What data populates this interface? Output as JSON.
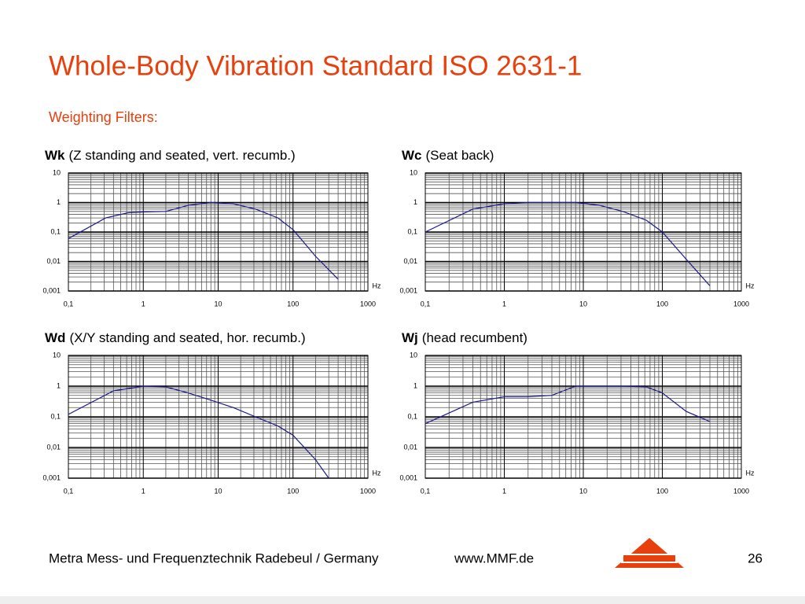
{
  "title": "Whole-Body Vibration Standard ISO 2631-1",
  "subtitle": "Weighting Filters:",
  "footer": {
    "company": "Metra Mess- und Frequenztechnik Radebeul / Germany",
    "url": "www.MMF.de",
    "page": "26"
  },
  "chart_data": [
    {
      "type": "line",
      "name": "Wk",
      "subtitle": "(Z standing and seated, vert. recumb.)",
      "xlabel": "Hz",
      "x": [
        0.1,
        0.315,
        0.63,
        1,
        2,
        4,
        8,
        16,
        31.5,
        63,
        100,
        200,
        400
      ],
      "values": [
        0.06,
        0.3,
        0.45,
        0.48,
        0.5,
        0.8,
        1.0,
        0.9,
        0.6,
        0.3,
        0.12,
        0.015,
        0.0025
      ],
      "color": "#1a1a8c",
      "log_x": true,
      "log_y": true,
      "grid": true,
      "xlim": [
        0.1,
        1000
      ],
      "ylim": [
        0.001,
        10
      ],
      "xticks": [
        {
          "value": 0.1,
          "label": "0,1"
        },
        1,
        10,
        100,
        1000
      ],
      "yticks": [
        {
          "value": 0.001,
          "label": "0,001"
        },
        {
          "value": 0.01,
          "label": "0,01"
        },
        {
          "value": 0.1,
          "label": "0,1"
        },
        1,
        10
      ]
    },
    {
      "type": "line",
      "name": "Wc",
      "subtitle": "(Seat back)",
      "xlabel": "Hz",
      "x": [
        0.1,
        0.4,
        1,
        2,
        8,
        16,
        31.5,
        63,
        100,
        200,
        400
      ],
      "values": [
        0.1,
        0.6,
        0.9,
        1.0,
        1.0,
        0.8,
        0.5,
        0.25,
        0.1,
        0.012,
        0.0015
      ],
      "color": "#1a1a8c",
      "log_x": true,
      "log_y": true,
      "grid": true,
      "xlim": [
        0.1,
        1000
      ],
      "ylim": [
        0.001,
        10
      ],
      "xticks": [
        {
          "value": 0.1,
          "label": "0,1"
        },
        1,
        10,
        100,
        1000
      ],
      "yticks": [
        {
          "value": 0.001,
          "label": "0,001"
        },
        {
          "value": 0.01,
          "label": "0,01"
        },
        {
          "value": 0.1,
          "label": "0,1"
        },
        1,
        10
      ]
    },
    {
      "type": "line",
      "name": "Wd",
      "subtitle": "(X/Y standing and seated, hor. recumb.)",
      "xlabel": "Hz",
      "x": [
        0.1,
        0.4,
        1,
        2,
        4,
        8,
        16,
        31.5,
        63,
        100,
        200,
        300
      ],
      "values": [
        0.12,
        0.7,
        1.0,
        0.95,
        0.6,
        0.35,
        0.2,
        0.1,
        0.05,
        0.025,
        0.004,
        0.001
      ],
      "color": "#1a1a8c",
      "log_x": true,
      "log_y": true,
      "grid": true,
      "xlim": [
        0.1,
        1000
      ],
      "ylim": [
        0.001,
        10
      ],
      "xticks": [
        {
          "value": 0.1,
          "label": "0,1"
        },
        1,
        10,
        100,
        1000
      ],
      "yticks": [
        {
          "value": 0.001,
          "label": "0,001"
        },
        {
          "value": 0.01,
          "label": "0,01"
        },
        {
          "value": 0.1,
          "label": "0,1"
        },
        1,
        10
      ]
    },
    {
      "type": "line",
      "name": "Wj",
      "subtitle": "(head recumbent)",
      "xlabel": "Hz",
      "x": [
        0.1,
        0.4,
        1,
        2,
        4,
        8,
        16,
        31.5,
        63,
        100,
        200,
        400
      ],
      "values": [
        0.06,
        0.3,
        0.45,
        0.45,
        0.5,
        1.0,
        1.0,
        1.0,
        0.95,
        0.6,
        0.15,
        0.07
      ],
      "color": "#1a1a8c",
      "log_x": true,
      "log_y": true,
      "grid": true,
      "xlim": [
        0.1,
        1000
      ],
      "ylim": [
        0.001,
        10
      ],
      "xticks": [
        {
          "value": 0.1,
          "label": "0,1"
        },
        1,
        10,
        100,
        1000
      ],
      "yticks": [
        {
          "value": 0.001,
          "label": "0,001"
        },
        {
          "value": 0.01,
          "label": "0,01"
        },
        {
          "value": 0.1,
          "label": "0,1"
        },
        1,
        10
      ]
    }
  ]
}
